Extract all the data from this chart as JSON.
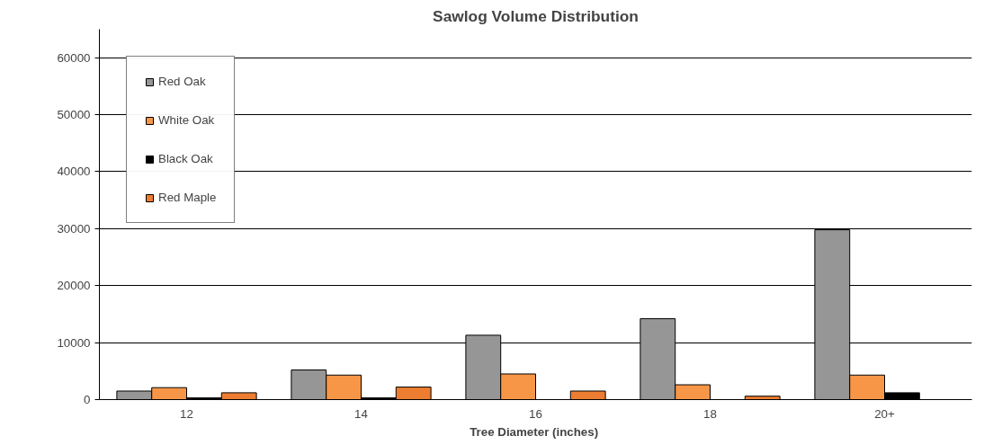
{
  "chart_data": {
    "type": "bar",
    "title": "Sawlog Volume Distribution",
    "xlabel": "Tree Diameter  (inches)",
    "categories": [
      "12",
      "14",
      "16",
      "18",
      "20+"
    ],
    "series": [
      {
        "name": "Red Oak",
        "color": "#969696",
        "values": [
          1500,
          5200,
          11300,
          14200,
          29800
        ]
      },
      {
        "name": "White Oak",
        "color": "#f79646",
        "values": [
          2100,
          4300,
          4500,
          2600,
          4300
        ]
      },
      {
        "name": "Black Oak",
        "color": "#000000",
        "values": [
          300,
          300,
          0,
          0,
          1200
        ]
      },
      {
        "name": "Red Maple",
        "color": "#ed7d31",
        "values": [
          1200,
          2200,
          1500,
          600,
          0
        ]
      }
    ],
    "ylim": [
      0,
      65000
    ],
    "yticks": [
      0,
      10000,
      20000,
      30000,
      40000,
      50000,
      60000
    ],
    "grid": "y",
    "legend": "top left"
  }
}
